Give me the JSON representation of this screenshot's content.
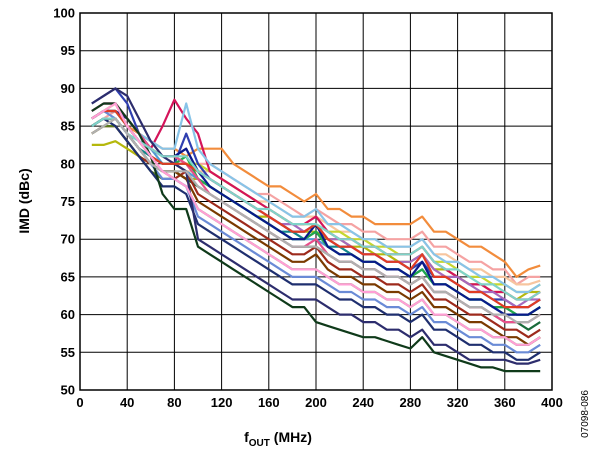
{
  "chart_data": {
    "type": "line",
    "xlabel": {
      "main": "f",
      "sub": "OUT",
      "unit": " (MHz)"
    },
    "ylabel": "IMD (dBc)",
    "xlim": [
      0,
      400
    ],
    "ylim": [
      50,
      100
    ],
    "x_ticks": [
      "0",
      "40",
      "80",
      "120",
      "160",
      "200",
      "240",
      "280",
      "320",
      "360",
      "400"
    ],
    "y_ticks": [
      "50",
      "55",
      "60",
      "65",
      "70",
      "75",
      "80",
      "85",
      "90",
      "95",
      "100"
    ],
    "grid": true,
    "figure_id": "07098-086",
    "x": [
      10,
      20,
      30,
      40,
      50,
      60,
      70,
      80,
      90,
      100,
      110,
      120,
      130,
      140,
      150,
      160,
      170,
      180,
      190,
      200,
      210,
      220,
      230,
      240,
      250,
      260,
      270,
      280,
      290,
      300,
      310,
      320,
      330,
      340,
      350,
      360,
      370,
      380,
      390
    ],
    "series": [
      {
        "color": "#f28c3c",
        "values": [
          86,
          87,
          88,
          85,
          84,
          83,
          82,
          82,
          81,
          82,
          82,
          82,
          80,
          79,
          78,
          77,
          77,
          76,
          75,
          76,
          74,
          74,
          73,
          73,
          72,
          72,
          72,
          72,
          73,
          71,
          71,
          70,
          69,
          69,
          68,
          67,
          65,
          66,
          66.5
        ]
      },
      {
        "color": "#f5a3a3",
        "values": [
          85,
          86,
          87,
          85,
          83,
          82,
          81,
          81,
          80,
          80,
          80,
          79,
          78,
          77,
          76,
          76,
          75,
          74,
          73,
          74,
          73,
          72,
          72,
          71,
          71,
          70,
          70,
          70,
          71,
          69,
          69,
          68,
          67,
          67,
          66,
          66,
          64,
          65,
          65
        ]
      },
      {
        "color": "#f7c59f",
        "values": [
          84,
          85,
          86,
          84,
          82,
          81,
          80,
          80,
          79,
          79,
          79,
          78,
          77,
          76,
          75,
          75,
          74,
          73,
          73,
          73,
          72,
          71,
          71,
          70,
          70,
          69,
          69,
          69,
          70,
          68,
          68,
          67,
          66,
          66,
          65,
          65,
          64,
          64,
          64.5
        ]
      },
      {
        "color": "#c6d62f",
        "values": [
          86,
          87,
          88,
          86,
          84,
          82,
          81,
          81,
          80,
          80,
          79,
          78,
          77,
          76,
          75,
          74,
          73,
          72,
          72,
          72,
          71,
          71,
          70,
          70,
          69,
          69,
          68,
          68,
          69,
          67,
          67,
          66,
          65,
          65,
          64,
          64,
          63,
          63,
          64
        ]
      },
      {
        "color": "#b5b80c",
        "values": [
          82.5,
          82.5,
          83,
          82,
          81,
          80,
          79,
          79,
          78,
          78,
          77,
          76,
          75,
          74,
          73,
          73,
          72,
          71,
          71,
          71,
          70,
          70,
          69,
          69,
          68,
          68,
          67,
          67,
          68,
          66,
          66,
          65,
          64,
          64,
          63,
          63,
          62,
          63,
          63
        ]
      },
      {
        "color": "#2f3fb0",
        "values": [
          88,
          89,
          90,
          88,
          84,
          81,
          80,
          80,
          84,
          80,
          78,
          77,
          76,
          75,
          74,
          73,
          72,
          71,
          71,
          72,
          70,
          69,
          69,
          68,
          68,
          67,
          67,
          66,
          67,
          65,
          65,
          64,
          63,
          63,
          62,
          62,
          61,
          61,
          62
        ]
      },
      {
        "color": "#d4145a",
        "values": [
          87,
          88,
          88,
          86,
          84,
          82,
          85,
          88.5,
          86,
          84,
          79,
          78,
          77,
          76,
          75,
          74,
          73,
          72,
          72,
          73,
          71,
          70,
          70,
          69,
          69,
          68,
          68,
          68,
          69,
          67,
          66,
          65,
          64,
          64,
          63,
          63,
          62,
          62,
          63
        ]
      },
      {
        "color": "#13878c",
        "values": [
          85,
          86,
          86,
          84,
          82,
          81,
          80,
          80,
          80,
          78,
          77,
          76,
          75,
          74,
          73,
          72,
          71,
          71,
          70,
          71,
          69,
          69,
          68,
          67,
          67,
          66,
          66,
          65,
          66,
          64,
          64,
          63,
          62,
          62,
          61,
          61,
          60,
          60,
          61
        ]
      },
      {
        "color": "#a569bd",
        "values": [
          86,
          87,
          87,
          85,
          83,
          82,
          81,
          81,
          82,
          79,
          78,
          77,
          76,
          75,
          74,
          73,
          72,
          72,
          71,
          72,
          70,
          70,
          69,
          68,
          68,
          67,
          67,
          67,
          68,
          66,
          65,
          65,
          64,
          63,
          63,
          62,
          61,
          62,
          62
        ]
      },
      {
        "color": "#88c4e8",
        "values": [
          87,
          88,
          88,
          86,
          84,
          83,
          82,
          82,
          88,
          82,
          80,
          79,
          78,
          77,
          76,
          75,
          74,
          73,
          73,
          74,
          72,
          72,
          71,
          70,
          70,
          69,
          69,
          69,
          70,
          68,
          67,
          67,
          66,
          65,
          65,
          64,
          63,
          63,
          64
        ]
      },
      {
        "color": "#4f9bd6",
        "values": [
          86,
          87,
          87,
          85,
          83,
          82,
          80,
          80,
          79,
          78,
          77,
          76,
          75,
          74,
          73,
          72,
          71,
          70,
          70,
          70,
          69,
          68,
          68,
          67,
          67,
          66,
          66,
          65,
          66,
          64,
          64,
          63,
          62,
          62,
          61,
          60,
          60,
          60,
          61
        ]
      },
      {
        "color": "#1a6a3a",
        "values": [
          85,
          86,
          86,
          84,
          82,
          80,
          79,
          79,
          78,
          77,
          76,
          75,
          74,
          73,
          72,
          71,
          70,
          69,
          69,
          69,
          68,
          67,
          67,
          66,
          66,
          65,
          65,
          64,
          65,
          63,
          63,
          62,
          61,
          61,
          60,
          59,
          59,
          58,
          59
        ]
      },
      {
        "color": "#22a84a",
        "values": [
          86,
          87,
          87,
          85,
          83,
          81,
          80,
          80,
          81,
          78,
          77,
          76,
          75,
          74,
          73,
          72,
          71,
          70,
          70,
          71,
          69,
          68,
          68,
          67,
          67,
          66,
          66,
          65,
          66,
          64,
          64,
          63,
          62,
          62,
          61,
          61,
          60,
          60,
          61
        ]
      },
      {
        "color": "#9d2a1c",
        "values": [
          84,
          85,
          85,
          83,
          81,
          80,
          79,
          78,
          79,
          76,
          75,
          74,
          73,
          72,
          71,
          70,
          69,
          68,
          68,
          69,
          67,
          66,
          66,
          65,
          65,
          64,
          64,
          63,
          64,
          62,
          62,
          61,
          60,
          60,
          59,
          58,
          58,
          57,
          58
        ]
      },
      {
        "color": "#0a1a8a",
        "values": [
          86,
          87,
          87,
          86,
          84,
          82,
          81,
          81,
          82,
          79,
          77,
          76,
          75,
          74,
          73,
          72,
          71,
          70,
          70,
          72,
          69,
          68,
          68,
          67,
          67,
          66,
          66,
          65,
          67,
          64,
          64,
          63,
          62,
          62,
          61,
          60,
          60,
          60,
          61
        ]
      },
      {
        "color": "#7a3a00",
        "values": [
          85,
          86,
          86,
          84,
          82,
          80,
          79,
          79,
          78,
          75,
          74,
          73,
          72,
          71,
          70,
          69,
          68,
          67,
          67,
          68,
          66,
          65,
          65,
          64,
          64,
          63,
          63,
          62,
          63,
          61,
          61,
          60,
          59,
          59,
          58,
          57,
          57,
          56,
          57
        ]
      },
      {
        "color": "#e94e8a",
        "values": [
          87,
          88,
          88,
          86,
          84,
          82,
          81,
          81,
          80,
          78,
          76,
          75,
          74,
          73,
          72,
          71,
          70,
          69,
          69,
          70,
          68,
          67,
          67,
          66,
          66,
          65,
          65,
          64,
          65,
          63,
          63,
          62,
          61,
          61,
          60,
          59,
          59,
          59,
          60
        ]
      },
      {
        "color": "#5a7a1a",
        "values": [
          84,
          85,
          85,
          83,
          81,
          79,
          78,
          78,
          77,
          74,
          73,
          72,
          71,
          70,
          69,
          68,
          67,
          66,
          66,
          66,
          65,
          64,
          64,
          63,
          63,
          62,
          62,
          61,
          62,
          60,
          60,
          59,
          58,
          58,
          57,
          57,
          56,
          56,
          57
        ]
      },
      {
        "color": "#6a8bd6",
        "values": [
          86,
          87,
          86,
          84,
          82,
          80,
          78,
          78,
          77,
          73,
          72,
          71,
          70,
          69,
          68,
          67,
          66,
          65,
          65,
          65,
          64,
          63,
          63,
          62,
          62,
          61,
          61,
          60,
          61,
          59,
          59,
          58,
          57,
          57,
          56,
          56,
          55,
          55,
          56
        ]
      },
      {
        "color": "#1f2f6f",
        "values": [
          85,
          86,
          85,
          83,
          81,
          79,
          77,
          77,
          76,
          72,
          71,
          70,
          69,
          68,
          67,
          66,
          65,
          64,
          64,
          64,
          63,
          62,
          62,
          61,
          61,
          60,
          60,
          59,
          60,
          58,
          58,
          57,
          56,
          56,
          55,
          55,
          54,
          54,
          55
        ]
      },
      {
        "color": "#2d2d6d",
        "values": [
          88,
          89,
          90,
          89,
          86,
          83,
          81,
          80,
          79,
          70,
          69,
          68,
          67,
          66,
          65,
          64,
          63,
          62,
          62,
          62,
          61,
          60,
          60,
          59,
          59,
          58,
          58,
          57,
          58,
          56,
          56,
          55,
          54,
          54,
          54,
          54,
          53.5,
          53.5,
          54
        ]
      },
      {
        "color": "#0f3a1a",
        "values": [
          87,
          88,
          88,
          86,
          84,
          81,
          76,
          74,
          74,
          69,
          68,
          67,
          66,
          65,
          64,
          63,
          62,
          61,
          61,
          59,
          58.5,
          58,
          57.5,
          57,
          57,
          56.5,
          56,
          55.5,
          57,
          55,
          54.5,
          54,
          53.5,
          53,
          53,
          52.5,
          52.5,
          52.5,
          52.5
        ]
      },
      {
        "color": "#e03b24",
        "values": [
          86,
          87,
          87,
          85,
          83,
          81,
          80,
          80,
          80,
          79,
          78,
          77,
          76,
          75,
          74,
          73,
          72,
          71,
          71,
          72,
          70,
          69,
          69,
          68,
          68,
          67,
          67,
          66,
          68,
          65,
          65,
          64,
          63,
          63,
          62,
          61,
          61,
          61,
          62
        ]
      },
      {
        "color": "#7fd3c9",
        "values": [
          85,
          86,
          86,
          84,
          83,
          82,
          81,
          81,
          81,
          79,
          78,
          77,
          76,
          75,
          74,
          74,
          73,
          72,
          72,
          72,
          71,
          70,
          70,
          69,
          69,
          68,
          68,
          68,
          69,
          67,
          66,
          66,
          65,
          64,
          64,
          63,
          62,
          62,
          63
        ]
      },
      {
        "color": "#b0b0b0",
        "values": [
          84,
          85,
          86,
          84,
          82,
          80,
          79,
          79,
          79,
          77,
          76,
          75,
          74,
          73,
          72,
          71,
          70,
          69,
          69,
          69,
          68,
          67,
          67,
          66,
          66,
          65,
          65,
          64,
          65,
          63,
          63,
          62,
          61,
          61,
          60,
          60,
          59,
          59,
          60
        ]
      },
      {
        "color": "#ff9fd6",
        "values": [
          86,
          87,
          88,
          85,
          83,
          81,
          79,
          78,
          77,
          74,
          73,
          72,
          71,
          70,
          69,
          68,
          67,
          66,
          66,
          66,
          65,
          64,
          64,
          63,
          63,
          62,
          62,
          61,
          62,
          60,
          60,
          59,
          58,
          58,
          57,
          57,
          56,
          56,
          57
        ]
      }
    ]
  }
}
